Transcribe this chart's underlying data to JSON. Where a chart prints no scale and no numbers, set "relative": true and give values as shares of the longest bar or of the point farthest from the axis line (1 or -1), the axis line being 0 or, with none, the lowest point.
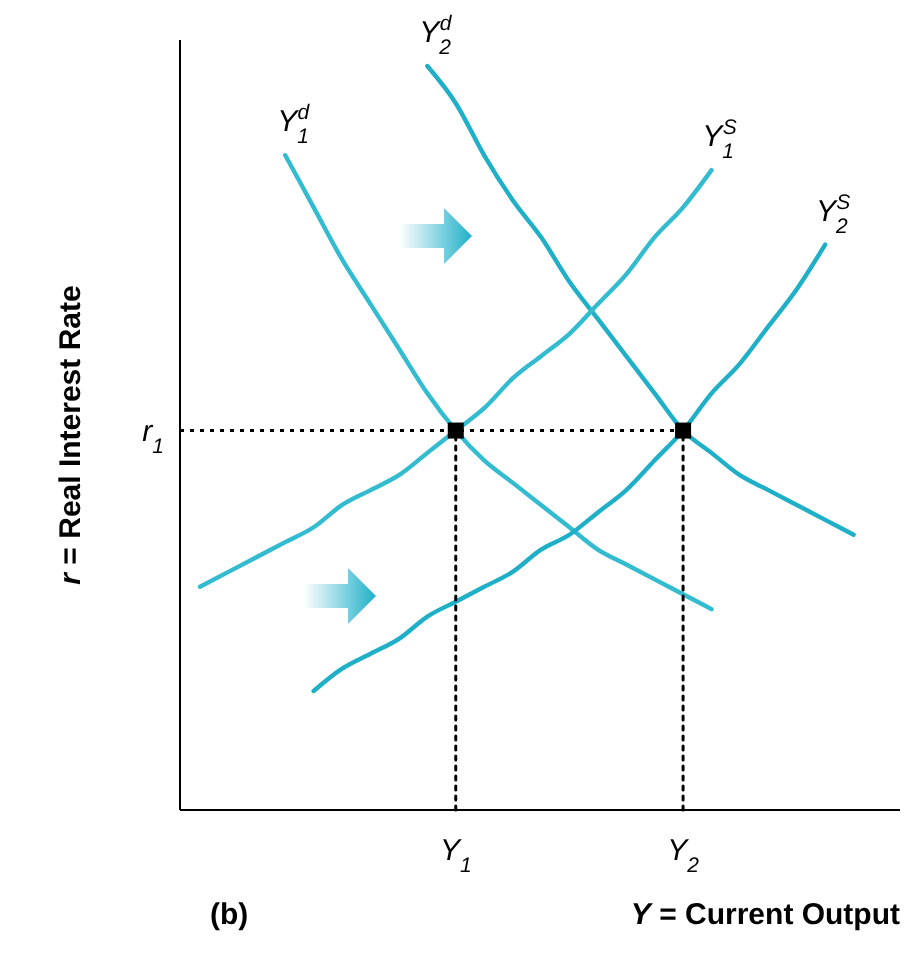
{
  "chart_data": {
    "type": "line",
    "relative": true,
    "legend": false,
    "grid": false,
    "tick_labels": "x",
    "line_style": "solid",
    "marker": "none",
    "xlabel": "Y = Current Output",
    "ylabel": "r = Real Interest Rate",
    "annotations": [
      "(b)"
    ],
    "categories": [
      null,
      null,
      null,
      null,
      null,
      null,
      null,
      null,
      null,
      "Y$_{1}$",
      null,
      null,
      null,
      null,
      null,
      null,
      null,
      "Y$_{2}$",
      null,
      null,
      null,
      null,
      null,
      null,
      null
    ],
    "series": [
      {
        "name": "Y$_{1}$$^{d}$",
        "color": "#33bcd0",
        "values": [
          null,
          null,
          null,
          0.88,
          0.81,
          0.74,
          0.68,
          0.62,
          0.56,
          0.51,
          0.47,
          0.44,
          0.41,
          0.38,
          0.35,
          0.33,
          0.31,
          0.29,
          0.27,
          null,
          null,
          null,
          null,
          null,
          null
        ]
      },
      {
        "name": "Y$_{2}$$^{d}$",
        "color": "#1fb0c8",
        "values": [
          null,
          null,
          null,
          null,
          null,
          null,
          null,
          null,
          1.0,
          0.95,
          0.88,
          0.82,
          0.77,
          0.71,
          0.66,
          0.61,
          0.56,
          0.51,
          0.48,
          0.45,
          0.43,
          0.41,
          0.39,
          0.37,
          null
        ]
      },
      {
        "name": "Y$_{1}$$^{S}$",
        "color": "#33bcd0",
        "values": [
          0.3,
          0.32,
          0.34,
          0.36,
          0.38,
          0.41,
          0.43,
          0.45,
          0.48,
          0.51,
          0.54,
          0.58,
          0.61,
          0.64,
          0.68,
          0.72,
          0.77,
          0.81,
          0.86,
          null,
          null,
          null,
          null,
          null,
          null
        ]
      },
      {
        "name": "Y$_{2}$$^{S}$",
        "color": "#1fb0c8",
        "values": [
          null,
          null,
          null,
          null,
          0.16,
          0.19,
          0.21,
          0.23,
          0.26,
          0.28,
          0.3,
          0.32,
          0.35,
          0.37,
          0.4,
          0.43,
          0.47,
          0.51,
          0.56,
          0.6,
          0.65,
          0.7,
          0.76,
          null,
          null
        ]
      },
      {
        "type": "line",
        "line_style": "dotted",
        "color": "#000000",
        "x": [
          "Y$_{1}$",
          "Y$_{1}$"
        ],
        "values": [
          0,
          0.51
        ]
      },
      {
        "type": "line",
        "line_style": "dotted",
        "color": "#000000",
        "x": [
          "Y$_{2}$",
          "Y$_{2}$"
        ],
        "values": [
          0,
          0.51
        ]
      },
      {
        "type": "scatter",
        "marker": "square",
        "color": "#000000",
        "x": [
          "Y$_{1}$",
          "Y$_{2}$"
        ],
        "values": [
          0.51,
          0.51
        ]
      }
    ],
    "ref_lines": [
      {
        "axis": "y",
        "value": 0.51,
        "label": "r$_{1}$",
        "line_style": "dotted",
        "color": "#000000"
      }
    ]
  }
}
